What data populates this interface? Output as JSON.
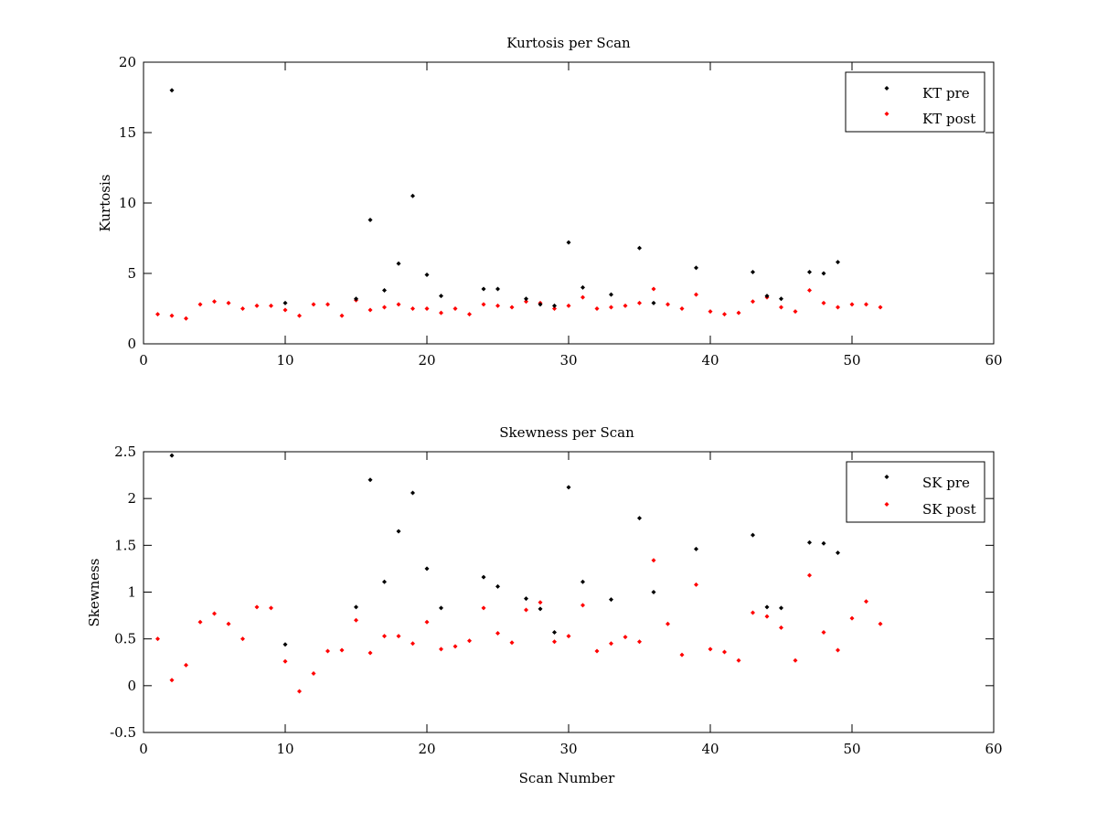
{
  "chart_data": [
    {
      "type": "scatter",
      "title": "Kurtosis per Scan",
      "xlabel": "",
      "ylabel": "Kurtosis",
      "xlim": [
        0,
        60
      ],
      "ylim": [
        0,
        20
      ],
      "xticks": [
        0,
        10,
        20,
        30,
        40,
        50,
        60
      ],
      "yticks": [
        0,
        5,
        10,
        15,
        20
      ],
      "grid": false,
      "legend_position": "top-right",
      "series": [
        {
          "name": "KT pre",
          "color": "#000000",
          "x": [
            2,
            10,
            15,
            16,
            17,
            18,
            19,
            20,
            21,
            24,
            25,
            27,
            28,
            29,
            30,
            31,
            33,
            35,
            36,
            39,
            43,
            44,
            45,
            47,
            48,
            49
          ],
          "y": [
            18.0,
            2.9,
            3.2,
            8.8,
            3.8,
            5.7,
            10.5,
            4.9,
            3.4,
            3.9,
            3.9,
            3.2,
            2.8,
            2.7,
            7.2,
            4.0,
            3.5,
            6.8,
            2.9,
            5.4,
            5.1,
            3.4,
            3.2,
            5.1,
            5.0,
            5.8
          ]
        },
        {
          "name": "KT post",
          "color": "#ff0000",
          "x": [
            1,
            2,
            3,
            4,
            5,
            6,
            7,
            8,
            9,
            10,
            11,
            12,
            13,
            14,
            15,
            16,
            17,
            18,
            19,
            20,
            21,
            22,
            23,
            24,
            25,
            26,
            27,
            28,
            29,
            30,
            31,
            32,
            33,
            34,
            35,
            36,
            37,
            38,
            39,
            40,
            41,
            42,
            43,
            44,
            45,
            46,
            47,
            48,
            49,
            50,
            51,
            52
          ],
          "y": [
            2.1,
            2.0,
            1.8,
            2.8,
            3.0,
            2.9,
            2.5,
            2.7,
            2.7,
            2.4,
            2.0,
            2.8,
            2.8,
            2.0,
            3.1,
            2.4,
            2.6,
            2.8,
            2.5,
            2.5,
            2.2,
            2.5,
            2.1,
            2.8,
            2.7,
            2.6,
            3.0,
            2.9,
            2.5,
            2.7,
            3.3,
            2.5,
            2.6,
            2.7,
            2.9,
            3.9,
            2.8,
            2.5,
            3.5,
            2.3,
            2.1,
            2.2,
            3.0,
            3.3,
            2.6,
            2.3,
            3.8,
            2.9,
            2.6,
            2.8,
            2.8,
            2.6
          ]
        }
      ]
    },
    {
      "type": "scatter",
      "title": "Skewness per Scan",
      "xlabel": "Scan Number",
      "ylabel": "Skewness",
      "xlim": [
        0,
        60
      ],
      "ylim": [
        -0.5,
        2.5
      ],
      "xticks": [
        0,
        10,
        20,
        30,
        40,
        50,
        60
      ],
      "yticks": [
        -0.5,
        0,
        0.5,
        1,
        1.5,
        2,
        2.5
      ],
      "grid": false,
      "legend_position": "top-right",
      "series": [
        {
          "name": "SK pre",
          "color": "#000000",
          "x": [
            2,
            10,
            15,
            16,
            17,
            18,
            19,
            20,
            21,
            24,
            25,
            27,
            28,
            29,
            30,
            31,
            33,
            35,
            36,
            39,
            43,
            44,
            45,
            47,
            48,
            49
          ],
          "y": [
            2.46,
            0.44,
            0.84,
            2.2,
            1.11,
            1.65,
            2.06,
            1.25,
            0.83,
            1.16,
            1.06,
            0.93,
            0.82,
            0.57,
            2.12,
            1.11,
            0.92,
            1.79,
            1.0,
            1.46,
            1.61,
            0.84,
            0.83,
            1.53,
            1.52,
            1.42
          ]
        },
        {
          "name": "SK post",
          "color": "#ff0000",
          "x": [
            1,
            2,
            3,
            4,
            5,
            6,
            7,
            8,
            9,
            10,
            11,
            12,
            13,
            14,
            15,
            16,
            17,
            18,
            19,
            20,
            21,
            22,
            23,
            24,
            25,
            26,
            27,
            28,
            29,
            30,
            31,
            32,
            33,
            34,
            35,
            36,
            37,
            38,
            39,
            40,
            41,
            42,
            43,
            44,
            45,
            46,
            47,
            48,
            49,
            50,
            51,
            52
          ],
          "y": [
            0.5,
            0.06,
            0.22,
            0.68,
            0.77,
            0.66,
            0.5,
            0.84,
            0.83,
            0.26,
            -0.06,
            0.13,
            0.37,
            0.38,
            0.7,
            0.35,
            0.53,
            0.53,
            0.45,
            0.68,
            0.39,
            0.42,
            0.48,
            0.83,
            0.56,
            0.46,
            0.81,
            0.89,
            0.47,
            0.53,
            0.86,
            0.37,
            0.45,
            0.52,
            0.47,
            1.34,
            0.66,
            0.33,
            1.08,
            0.39,
            0.36,
            0.27,
            0.78,
            0.74,
            0.62,
            0.27,
            1.18,
            0.57,
            0.38,
            0.72,
            0.9,
            0.66
          ]
        }
      ]
    }
  ]
}
